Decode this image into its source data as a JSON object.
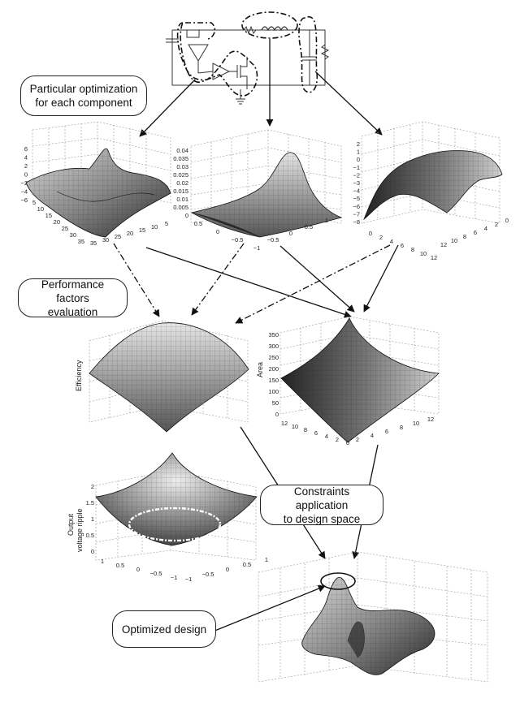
{
  "callouts": {
    "particular": "Particular optimization\nfor each component",
    "performance": "Performance factors\nevaluation",
    "constraints": "Constraints application\nto design space",
    "optimized": "Optimized design"
  },
  "plots": {
    "p1": {
      "zticks": [
        "6",
        "4",
        "2",
        "0",
        "−2",
        "−4",
        "−6"
      ],
      "xticks": [
        "5",
        "10",
        "15",
        "20",
        "25",
        "30",
        "35"
      ],
      "yticks": [
        "5",
        "10",
        "15",
        "20",
        "25",
        "30",
        "35"
      ]
    },
    "p2": {
      "zticks": [
        "0.04",
        "0.035",
        "0.03",
        "0.025",
        "0.02",
        "0.015",
        "0.01",
        "0.005",
        "0"
      ],
      "xticks": [
        "0.5",
        "0",
        "−0.5",
        "−1"
      ],
      "yticks": [
        "−0.5",
        "0",
        "0.5",
        "1"
      ]
    },
    "p3": {
      "zticks": [
        "2",
        "1",
        "0",
        "−1",
        "−2",
        "−3",
        "−4",
        "−5",
        "−6",
        "−7",
        "−8"
      ],
      "xticks": [
        "0",
        "2",
        "4",
        "6",
        "8",
        "10",
        "12"
      ],
      "yticks": [
        "12",
        "10",
        "8",
        "6",
        "4",
        "2",
        "0"
      ]
    },
    "eff": {
      "ylabel": "Efficiency"
    },
    "area": {
      "ylabel": "Area",
      "zticks": [
        "350",
        "300",
        "250",
        "200",
        "150",
        "100",
        "50",
        "0"
      ],
      "xticks": [
        "12",
        "10",
        "8",
        "6",
        "4",
        "2",
        "0"
      ],
      "yticks": [
        "2",
        "4",
        "6",
        "8",
        "10",
        "12"
      ]
    },
    "ripple": {
      "ylabel_1": "Output",
      "ylabel_2": "voltage ripple",
      "zticks": [
        "2",
        "1.5",
        "1",
        "0.5",
        "0"
      ],
      "xticks": [
        "1",
        "0.5",
        "0",
        "−0.5",
        "−1"
      ],
      "yticks": [
        "−1",
        "−0.5",
        "0",
        "0.5",
        "1"
      ]
    }
  }
}
